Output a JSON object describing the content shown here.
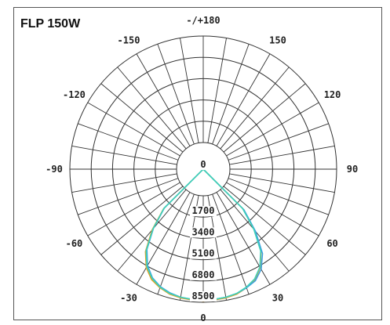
{
  "title": "FLP 150W",
  "chart_data": {
    "type": "polar-line",
    "title": "FLP 150W",
    "angle_ticks": [
      {
        "value": 0,
        "label": "0"
      },
      {
        "value": 30,
        "label": "30"
      },
      {
        "value": -30,
        "label": "-30"
      },
      {
        "value": 60,
        "label": "60"
      },
      {
        "value": -60,
        "label": "-60"
      },
      {
        "value": 90,
        "label": "90"
      },
      {
        "value": -90,
        "label": "-90"
      },
      {
        "value": 120,
        "label": "120"
      },
      {
        "value": -120,
        "label": "-120"
      },
      {
        "value": 150,
        "label": "150"
      },
      {
        "value": -150,
        "label": "-150"
      },
      {
        "value": 180,
        "label": "-/+180"
      }
    ],
    "radial_ticks": [
      {
        "value": 0,
        "label": "0"
      },
      {
        "value": 1700,
        "label": "1700"
      },
      {
        "value": 3400,
        "label": "3400"
      },
      {
        "value": 5100,
        "label": "5100"
      },
      {
        "value": 6800,
        "label": "6800"
      },
      {
        "value": 8500,
        "label": "8500"
      }
    ],
    "radial_range": [
      0,
      8500
    ],
    "angle_grid_step": 10,
    "grid": true,
    "series": [
      {
        "color": "#e0a020",
        "angles": [
          -45,
          -40,
          -35,
          -30,
          -25,
          -20,
          -15,
          -10,
          -5,
          0,
          5,
          10,
          15,
          20,
          25,
          30,
          35,
          40,
          45
        ],
        "values": [
          2350,
          4200,
          5900,
          6950,
          7600,
          7950,
          8200,
          8300,
          8350,
          8400,
          8350,
          8300,
          8200,
          7950,
          7600,
          6950,
          5900,
          4200,
          2350
        ]
      },
      {
        "color": "#3aa0e0",
        "angles": [
          -45,
          -40,
          -35,
          -30,
          -25,
          -20,
          -15,
          -10,
          -5,
          0,
          5,
          10,
          15,
          20,
          25,
          30,
          35,
          40,
          45
        ],
        "values": [
          2250,
          4050,
          5700,
          6750,
          7450,
          7850,
          8100,
          8250,
          8300,
          8350,
          8300,
          8250,
          8150,
          7950,
          7700,
          7100,
          6100,
          4350,
          2450
        ]
      },
      {
        "color": "#40d0b8",
        "angles": [
          -45,
          -40,
          -35,
          -30,
          -25,
          -20,
          -15,
          -10,
          -5,
          0,
          5,
          10,
          15,
          20,
          25,
          30,
          35,
          40,
          45
        ],
        "values": [
          2300,
          4100,
          5800,
          6850,
          7500,
          7900,
          8150,
          8250,
          8300,
          8350,
          8300,
          8250,
          8150,
          7900,
          7550,
          6900,
          5850,
          4150,
          2300
        ]
      }
    ]
  }
}
